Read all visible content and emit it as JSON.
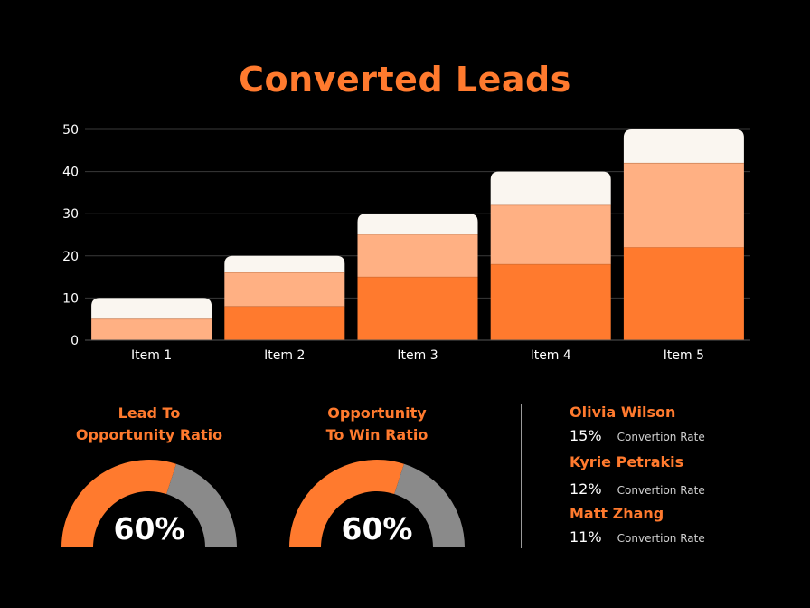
{
  "chart_data": {
    "type": "bar",
    "stacked": true,
    "title": "Converted Leads",
    "categories": [
      "Item 1",
      "Item 2",
      "Item 3",
      "Item 4",
      "Item 5"
    ],
    "series": [
      {
        "values": [
          0,
          8,
          15,
          18,
          22
        ]
      },
      {
        "values": [
          5,
          8,
          10,
          14,
          20
        ]
      },
      {
        "values": [
          5,
          4,
          5,
          8,
          8
        ]
      }
    ],
    "yticks": [
      "0",
      "10",
      "20",
      "30",
      "40",
      "50"
    ],
    "ylim": [
      0,
      50
    ],
    "grid": true,
    "legend": "none"
  },
  "colors": {
    "accent": "#FF7A2E",
    "series": [
      "#FF7A2E",
      "#FFB083",
      "#FAF6F0"
    ],
    "gauge_rest": "#8A8A8A",
    "grid": "#3a3a3a"
  },
  "gauges": [
    {
      "title_line1": "Lead To",
      "title_line2": "Opportunity Ratio",
      "value_label": "60%",
      "fraction": 0.6
    },
    {
      "title_line1": "Opportunity",
      "title_line2": "To Win Ratio",
      "value_label": "60%",
      "fraction": 0.6
    }
  ],
  "people": [
    {
      "name": "Olivia Wilson",
      "rate": "15%",
      "label": "Convertion Rate"
    },
    {
      "name": "Kyrie Petrakis",
      "rate": "12%",
      "label": "Convertion Rate"
    },
    {
      "name": "Matt Zhang",
      "rate": "11%",
      "label": "Convertion Rate"
    }
  ]
}
